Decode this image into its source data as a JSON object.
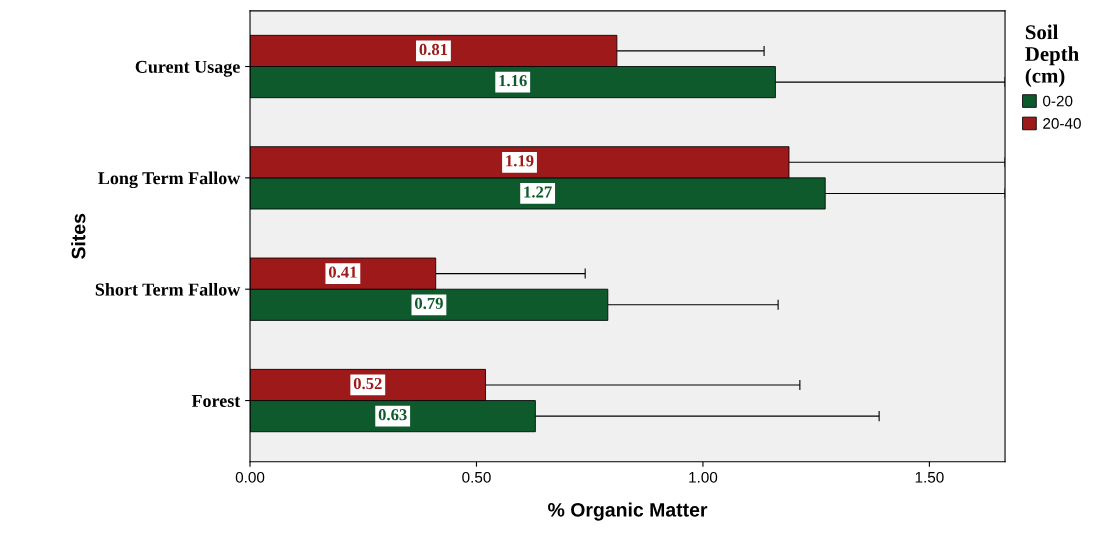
{
  "chart_data": {
    "type": "bar",
    "orientation": "horizontal",
    "xlabel": "% Organic Matter",
    "ylabel": "Sites",
    "legend_title": "Soil Depth (cm)",
    "categories": [
      "Curent Usage",
      "Long Term Fallow",
      "Short Term Fallow",
      "Forest"
    ],
    "series": [
      {
        "name": "0-20",
        "color": "#0f5a2d",
        "values": [
          1.16,
          1.27,
          0.79,
          0.63
        ],
        "errors": [
          [
            1.16,
            1.667
          ],
          [
            1.27,
            1.667
          ],
          [
            0.79,
            1.166
          ],
          [
            0.63,
            1.389
          ]
        ]
      },
      {
        "name": "20-40",
        "color": "#9e1a1a",
        "values": [
          0.81,
          1.19,
          0.41,
          0.52
        ],
        "errors": [
          [
            0.81,
            1.135
          ],
          [
            1.19,
            1.667
          ],
          [
            0.41,
            0.74
          ],
          [
            0.52,
            1.214
          ]
        ]
      }
    ],
    "xlim": [
      0,
      1.667
    ],
    "xticks": [
      {
        "value": 0,
        "label": "0.00"
      },
      {
        "value": 0.5,
        "label": "0.50"
      },
      {
        "value": 1,
        "label": "1.00"
      },
      {
        "value": 1.5,
        "label": "1.50"
      }
    ],
    "data_labels": true,
    "grid": false,
    "legend": "right"
  }
}
